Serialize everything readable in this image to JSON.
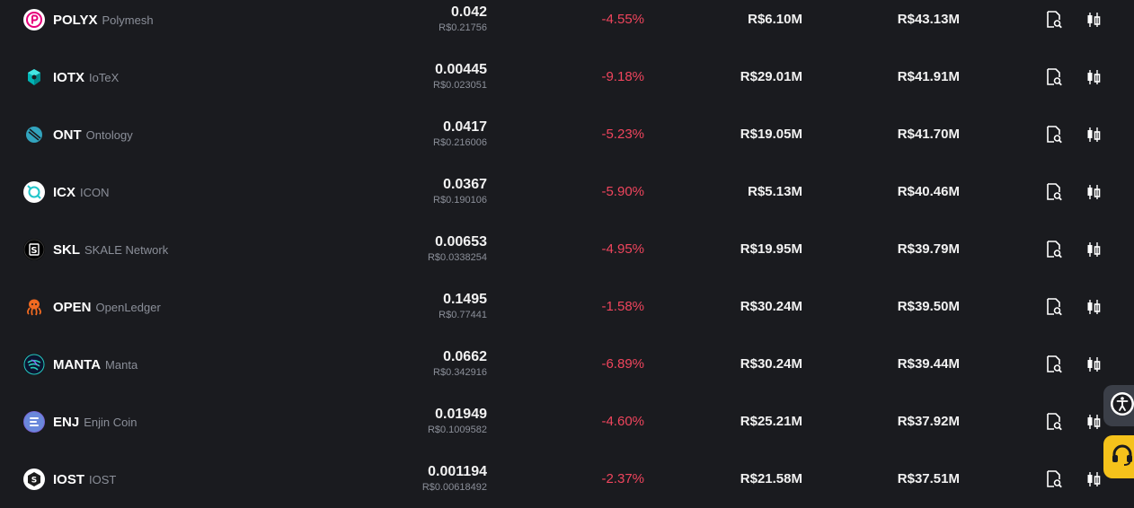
{
  "rows": [
    {
      "symbol": "POLYX",
      "name": "Polymesh",
      "price": "0.042",
      "price_brl": "R$0.21756",
      "change": "-4.55%",
      "volume": "R$6.10M",
      "market_cap": "R$43.13M",
      "logo": {
        "icon": "polymesh-logo",
        "color": "#ffffff",
        "accent": "#e6007a"
      }
    },
    {
      "symbol": "IOTX",
      "name": "IoTeX",
      "price": "0.00445",
      "price_brl": "R$0.023051",
      "change": "-9.18%",
      "volume": "R$29.01M",
      "market_cap": "R$41.91M",
      "logo": {
        "icon": "iotex-logo",
        "color": "transparent",
        "accent": "#00d4d5"
      }
    },
    {
      "symbol": "ONT",
      "name": "Ontology",
      "price": "0.0417",
      "price_brl": "R$0.216006",
      "change": "-5.23%",
      "volume": "R$19.05M",
      "market_cap": "R$41.70M",
      "logo": {
        "icon": "ontology-logo",
        "color": "transparent",
        "accent": "#32a4be"
      }
    },
    {
      "symbol": "ICX",
      "name": "ICON",
      "price": "0.0367",
      "price_brl": "R$0.190106",
      "change": "-5.90%",
      "volume": "R$5.13M",
      "market_cap": "R$40.46M",
      "logo": {
        "icon": "icon-logo",
        "color": "#ffffff",
        "accent": "#1fc5c9"
      }
    },
    {
      "symbol": "SKL",
      "name": "SKALE Network",
      "price": "0.00653",
      "price_brl": "R$0.0338254",
      "change": "-4.95%",
      "volume": "R$19.95M",
      "market_cap": "R$39.79M",
      "logo": {
        "icon": "skale-logo",
        "color": "#000000",
        "accent": "#ffffff"
      }
    },
    {
      "symbol": "OPEN",
      "name": "OpenLedger",
      "price": "0.1495",
      "price_brl": "R$0.77441",
      "change": "-1.58%",
      "volume": "R$30.24M",
      "market_cap": "R$39.50M",
      "logo": {
        "icon": "openledger-logo",
        "color": "transparent",
        "accent": "#f26a21"
      }
    },
    {
      "symbol": "MANTA",
      "name": "Manta",
      "price": "0.0662",
      "price_brl": "R$0.342916",
      "change": "-6.89%",
      "volume": "R$30.24M",
      "market_cap": "R$39.44M",
      "logo": {
        "icon": "manta-logo",
        "color": "#0b1430",
        "accent": "#29ccb9"
      }
    },
    {
      "symbol": "ENJ",
      "name": "Enjin Coin",
      "price": "0.01949",
      "price_brl": "R$0.1009582",
      "change": "-4.60%",
      "volume": "R$25.21M",
      "market_cap": "R$37.92M",
      "logo": {
        "icon": "enjin-logo",
        "color": "#7866d5",
        "accent": "#ffffff"
      }
    },
    {
      "symbol": "IOST",
      "name": "IOST",
      "price": "0.001194",
      "price_brl": "R$0.00618492",
      "change": "-2.37%",
      "volume": "R$21.58M",
      "market_cap": "R$37.51M",
      "logo": {
        "icon": "iost-logo",
        "color": "#ffffff",
        "accent": "#1c1c1c"
      }
    }
  ],
  "actions": {
    "details_icon": "document-search-icon",
    "trade_icon": "candlestick-chart-icon"
  },
  "floating": {
    "accessibility_icon": "accessibility-icon",
    "support_icon": "headset-icon"
  },
  "colors": {
    "background": "#1a1b1f",
    "negative": "#f0455d",
    "muted": "#8b8f99",
    "support": "#f5c21b"
  }
}
